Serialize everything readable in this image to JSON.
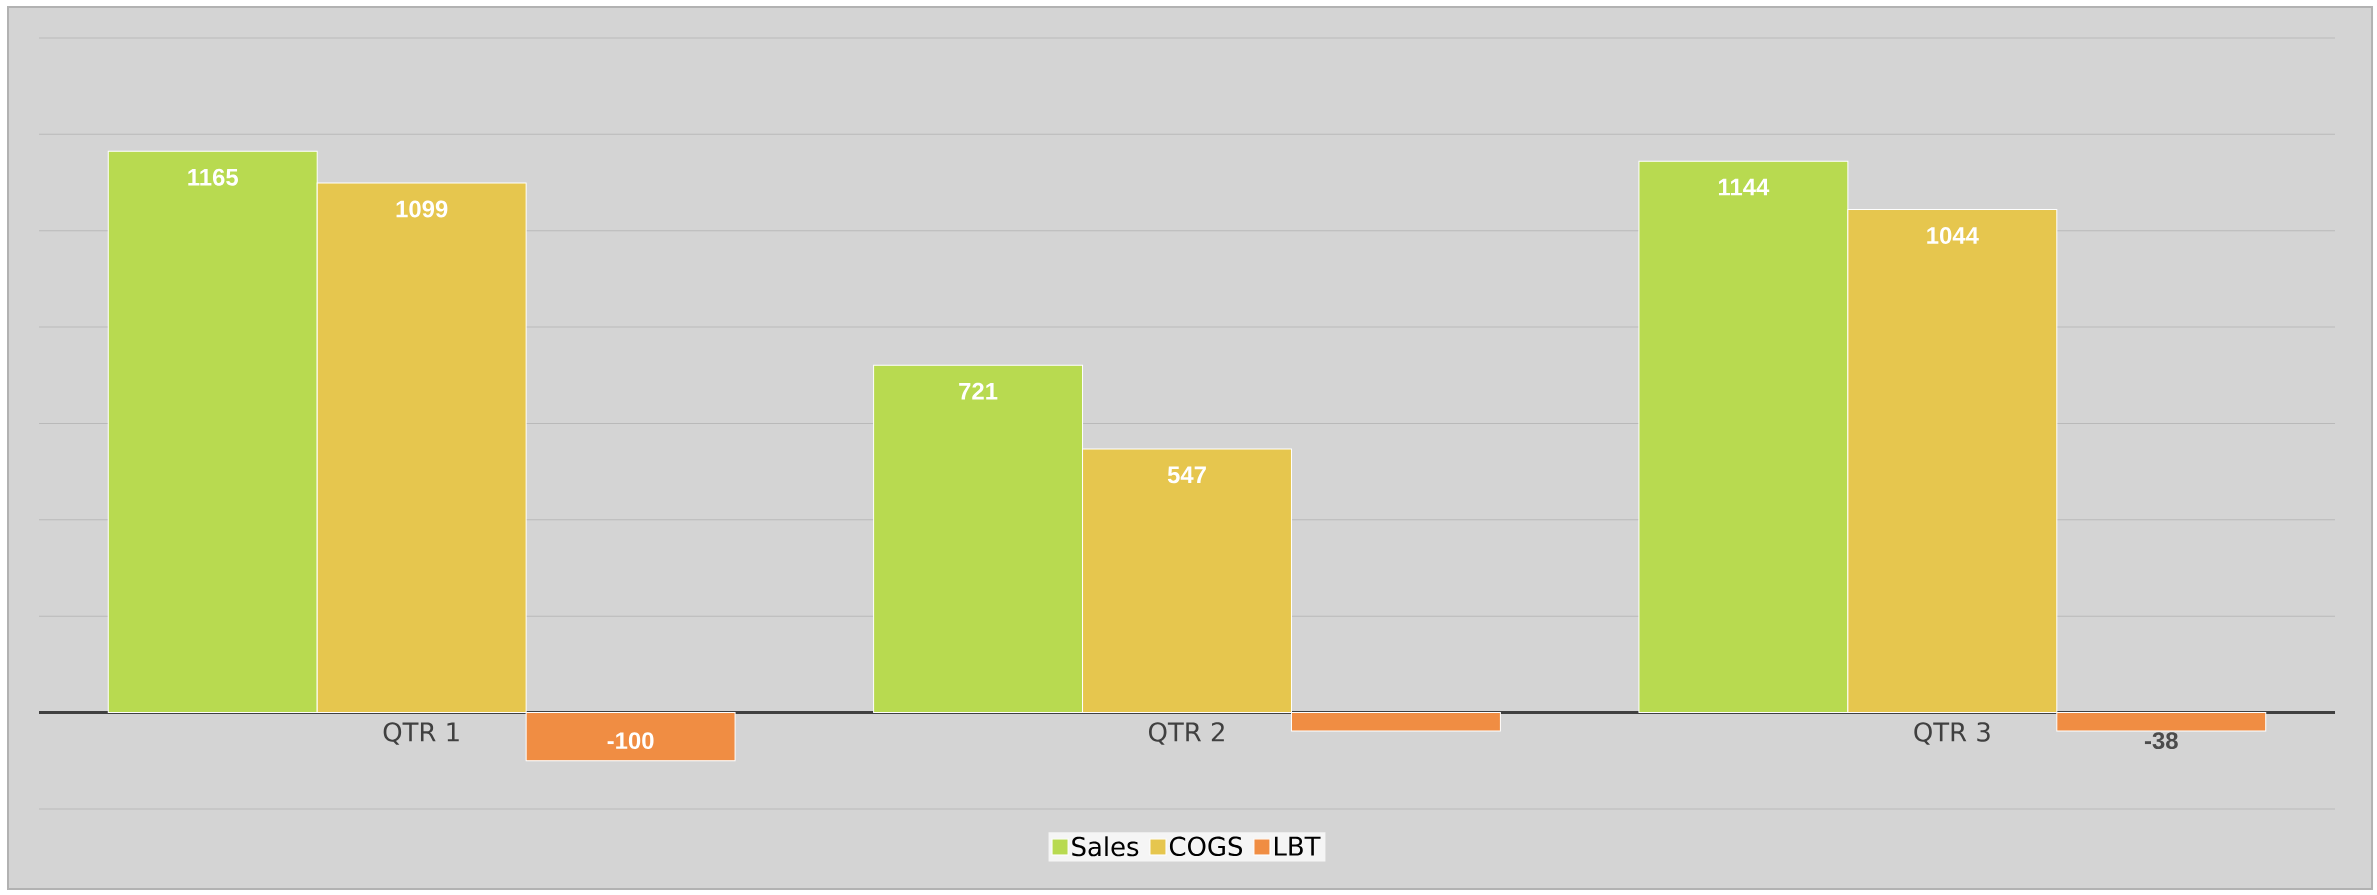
{
  "chart_data": {
    "type": "bar",
    "categories": [
      "QTR 1",
      "QTR 2",
      "QTR 3"
    ],
    "series": [
      {
        "name": "Sales",
        "color": "#b8da50",
        "values": [
          1165,
          721,
          1144
        ],
        "value_labels": [
          "1165",
          "721",
          "1144"
        ]
      },
      {
        "name": "COGS",
        "color": "#e6c64e",
        "values": [
          1099,
          547,
          1044
        ],
        "value_labels": [
          "1099",
          "547",
          "1044"
        ]
      },
      {
        "name": "LBT",
        "color": "#f08d43",
        "values": [
          -100,
          -38,
          -38
        ],
        "value_labels": [
          "-100",
          null,
          "-38"
        ]
      }
    ],
    "ylim": [
      -200,
      1400
    ],
    "yticks": [
      {
        "value": -200,
        "label": null
      },
      {
        "value": 0,
        "label": null
      },
      {
        "value": 200,
        "label": null
      },
      {
        "value": 400,
        "label": null
      },
      {
        "value": 600,
        "label": null
      },
      {
        "value": 800,
        "label": null
      },
      {
        "value": 1000,
        "label": null
      },
      {
        "value": 1200,
        "label": null
      },
      {
        "value": 1400,
        "label": null
      }
    ],
    "tick_labels": "x",
    "grid": "y",
    "legend": "bottom"
  }
}
